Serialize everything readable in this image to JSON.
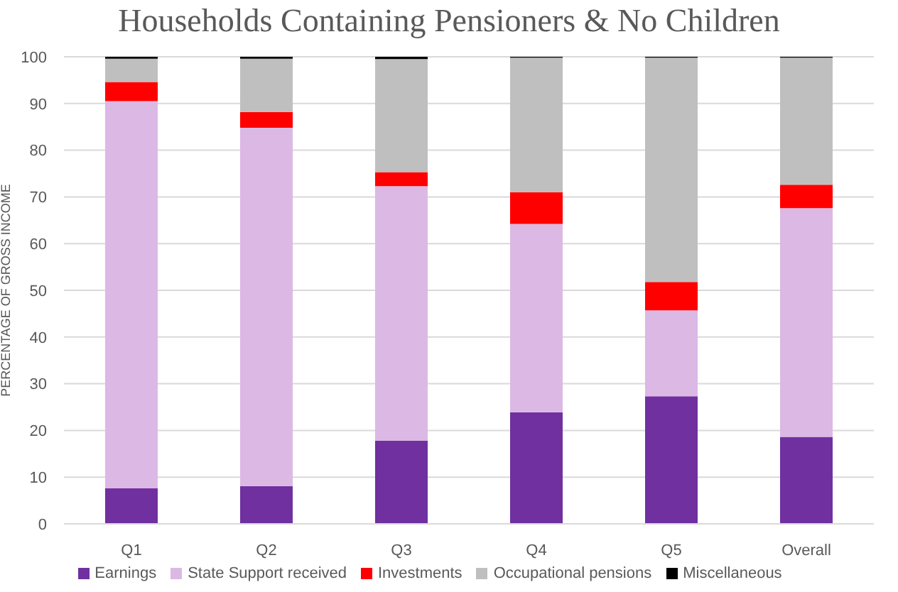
{
  "chart_data": {
    "type": "bar",
    "title": "Households Containing Pensioners & No Children",
    "ylabel": "PERCENTAGE OF GROSS INCOME",
    "categories": [
      "Q1",
      "Q2",
      "Q3",
      "Q4",
      "Q5",
      "Overall"
    ],
    "series": [
      {
        "name": "Earnings",
        "color": "#7030a0",
        "values": [
          7.6,
          8.1,
          17.8,
          23.9,
          27.3,
          18.6
        ]
      },
      {
        "name": "State Support received",
        "color": "#dcb8e4",
        "values": [
          82.9,
          76.7,
          54.5,
          40.3,
          18.4,
          49.0
        ]
      },
      {
        "name": "Investments",
        "color": "#ff0000",
        "values": [
          4.1,
          3.4,
          3.0,
          6.8,
          6.1,
          5.0
        ]
      },
      {
        "name": "Occupational pensions",
        "color": "#bfbfbf",
        "values": [
          5.0,
          11.4,
          24.2,
          28.8,
          48.0,
          27.2
        ]
      },
      {
        "name": "Miscellaneous",
        "color": "#000000",
        "values": [
          0.4,
          0.4,
          0.5,
          0.2,
          0.2,
          0.2
        ]
      }
    ],
    "stacked": true,
    "ylim": [
      0,
      100
    ],
    "yticks": [
      0,
      10,
      20,
      30,
      40,
      50,
      60,
      70,
      80,
      90,
      100
    ],
    "grid": "y",
    "legend": "bottom"
  }
}
